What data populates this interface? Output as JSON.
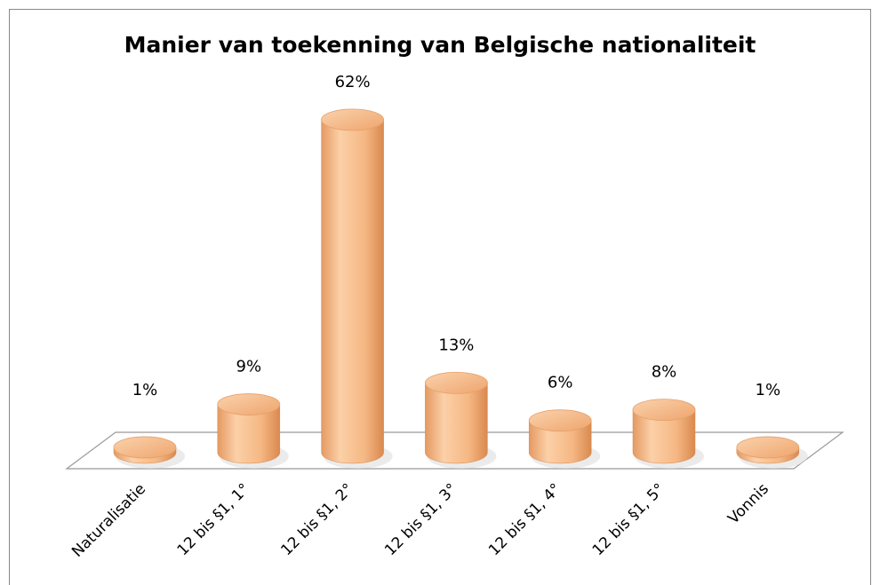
{
  "chart_data": {
    "type": "bar",
    "title": "Manier van toekenning van Belgische nationaliteit",
    "categories": [
      "Naturalisatie",
      "12 bis §1, 1°",
      "12 bis §1, 2°",
      "12 bis §1, 3°",
      "12 bis §1, 4°",
      "12 bis §1, 5°",
      "Vonnis"
    ],
    "values": [
      1,
      9,
      62,
      13,
      6,
      8,
      1
    ],
    "value_labels": [
      "1%",
      "9%",
      "62%",
      "13%",
      "6%",
      "8%",
      "1%"
    ],
    "color": "#f5b783"
  }
}
